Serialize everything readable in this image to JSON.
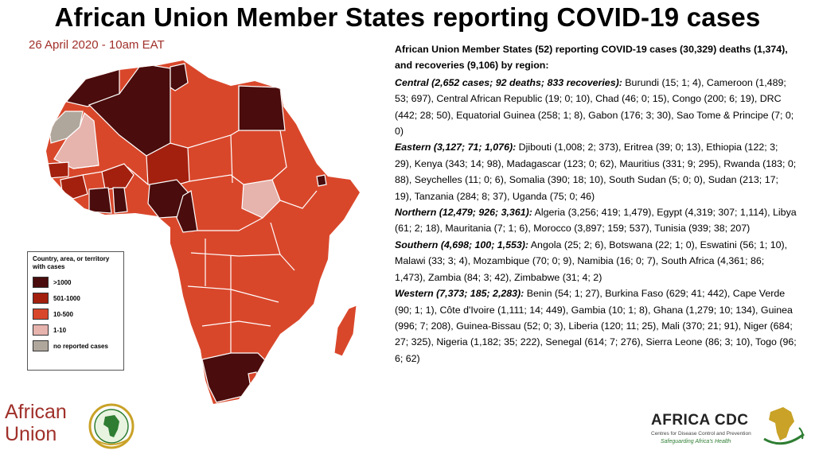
{
  "title": "African Union Member States reporting COVID-19 cases",
  "date": "26 April 2020 - 10am EAT",
  "colors": {
    "over_1000": "#4a0c0c",
    "c501_1000": "#a3200f",
    "c10_500": "#d9472b",
    "c1_10": "#e6b3ad",
    "none": "#b0a79c",
    "border": "#ffffff"
  },
  "legend": {
    "title": "Country, area, or territory with cases",
    "items": [
      {
        "label": ">1000",
        "color": "#4a0c0c"
      },
      {
        "label": "501-1000",
        "color": "#a3200f"
      },
      {
        "label": "10-500",
        "color": "#d9472b"
      },
      {
        "label": "1-10",
        "color": "#e6b3ad"
      },
      {
        "label": "no reported cases",
        "color": "#b0a79c"
      }
    ]
  },
  "intro": "African Union Member States (52) reporting COVID-19 cases (30,329) deaths (1,374), and recoveries (9,106) by region:",
  "regions": [
    {
      "head": "Central (2,652 cases; 92 deaths; 833 recoveries):",
      "text": "Burundi (15; 1; 4), Cameroon (1,489; 53; 697), Central African Republic (19; 0; 10), Chad (46; 0; 15), Congo (200; 6; 19), DRC (442; 28; 50), Equatorial Guinea (258; 1; 8), Gabon (176; 3; 30), Sao Tome & Principe (7; 0; 0)"
    },
    {
      "head": "Eastern (3,127; 71; 1,076):",
      "text": "Djibouti (1,008; 2; 373), Eritrea (39; 0; 13), Ethiopia (122; 3; 29), Kenya (343; 14; 98), Madagascar (123; 0; 62), Mauritius (331; 9; 295), Rwanda (183; 0; 88), Seychelles (11; 0; 6), Somalia (390; 18; 10), South Sudan (5; 0; 0), Sudan (213; 17; 19), Tanzania (284; 8; 37), Uganda (75; 0; 46)"
    },
    {
      "head": "Northern (12,479; 926; 3,361):",
      "text": "Algeria (3,256; 419; 1,479), Egypt (4,319; 307; 1,114), Libya (61; 2; 18), Mauritania (7; 1; 6), Morocco (3,897; 159; 537), Tunisia (939; 38; 207)"
    },
    {
      "head": "Southern (4,698; 100; 1,553):",
      "text": "Angola (25; 2; 6), Botswana (22; 1; 0), Eswatini (56; 1; 10), Malawi (33; 3; 4), Mozambique (70; 0; 9), Namibia (16; 0; 7), South Africa (4,361; 86; 1,473), Zambia (84; 3; 42), Zimbabwe (31; 4; 2)"
    },
    {
      "head": "Western (7,373; 185; 2,283):",
      "text": "Benin (54; 1; 27), Burkina Faso (629; 41; 442), Cape Verde (90; 1; 1), Côte d'Ivoire (1,111; 14; 449), Gambia (10; 1; 8), Ghana (1,279; 10; 134), Guinea (996; 7; 208), Guinea-Bissau (52; 0; 3), Liberia (120; 11; 25), Mali (370; 21; 91), Niger (684; 27; 325), Nigeria (1,182; 35; 222), Senegal (614; 7; 276), Sierra Leone (86; 3; 10), Togo (96; 6; 62)"
    }
  ],
  "logos": {
    "au_line1": "African",
    "au_line2": "Union",
    "cdc_name": "AFRICA CDC",
    "cdc_sub": "Centres for Disease Control and Prevention",
    "cdc_tag": "Safeguarding Africa's Health"
  }
}
